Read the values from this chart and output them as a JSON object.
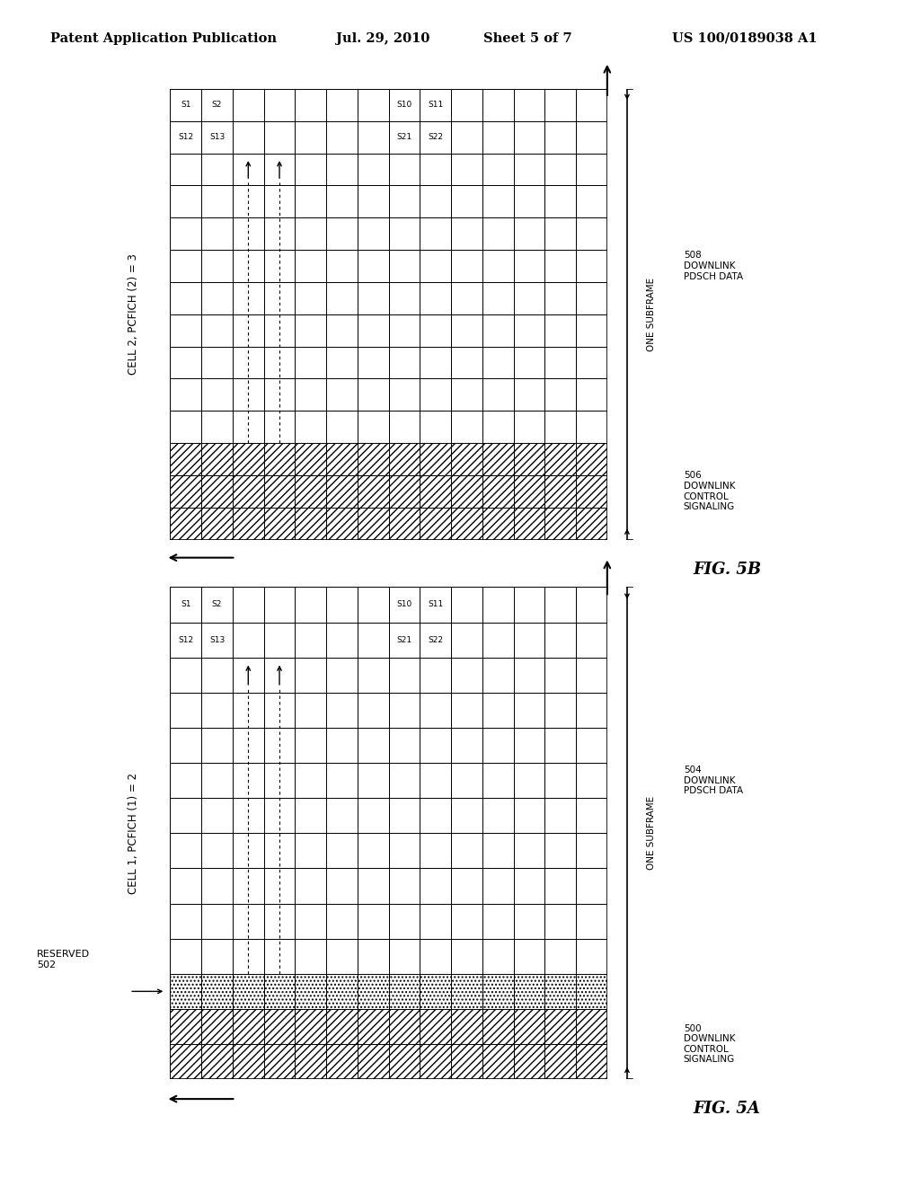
{
  "header_text": "Patent Application Publication",
  "header_date": "Jul. 29, 2010",
  "header_sheet": "Sheet 5 of 7",
  "header_patent": "US 100/0189038 A1",
  "fig_a_label": "FIG. 5A",
  "fig_b_label": "FIG. 5B",
  "cell1_label": "CELL 1, PCFICH (1) = 2",
  "cell2_label": "CELL 2, PCFICH (2) = 3",
  "reserved_label": "RESERVED",
  "reserved_num": "502",
  "label_500": "500",
  "label_504": "504",
  "label_506": "506",
  "label_508": "508",
  "one_subframe": "ONE SUBFRAME",
  "grid_cols": 14,
  "grid_rows": 14,
  "control_rows_a": 2,
  "control_rows_b": 3,
  "bg_color": "#ffffff"
}
